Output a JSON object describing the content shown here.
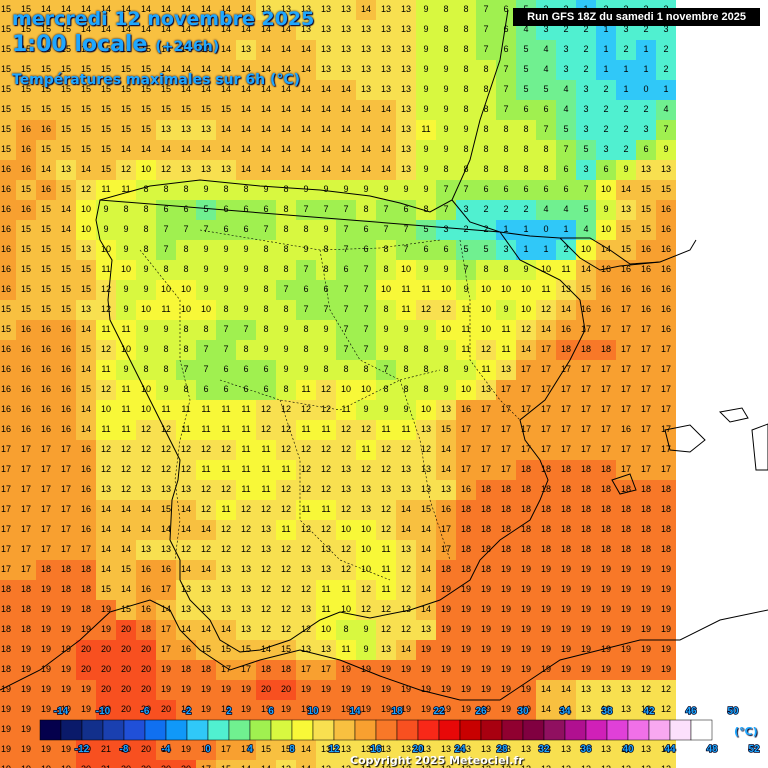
{
  "header": {
    "date": "mercredi 12 novembre 2025",
    "time": "1:00 locale",
    "lead": "(+246h)",
    "parameter": "Températures maximales sur 6h (°C)"
  },
  "run_label": "Run GFS 18Z du samedi 1 novembre 2025",
  "copyright": "Copyright 2025 Meteociel.fr",
  "legend": {
    "unit": "(°C)",
    "top_labels": [
      "-14",
      "-10",
      "-6",
      "-2",
      "2",
      "6",
      "10",
      "14",
      "18",
      "22",
      "26",
      "30",
      "34",
      "38",
      "42",
      "46",
      "50"
    ],
    "bottom_labels": [
      "-12",
      "-8",
      "-4",
      "0",
      "4",
      "8",
      "12",
      "16",
      "20",
      "24",
      "28",
      "32",
      "36",
      "40",
      "44",
      "48",
      "52"
    ],
    "colors": [
      "#04004c",
      "#0a1a6a",
      "#12308c",
      "#1a40b0",
      "#2050d8",
      "#1070f0",
      "#1098f8",
      "#30c8f8",
      "#50f0d0",
      "#70f090",
      "#a0f050",
      "#d8f840",
      "#f8f838",
      "#f8e050",
      "#f8c040",
      "#f8a030",
      "#f87828",
      "#f85020",
      "#f82818",
      "#e80808",
      "#c80000",
      "#a80010",
      "#900030",
      "#800040",
      "#901060",
      "#b01090",
      "#d020b8",
      "#e040d8",
      "#f070e8",
      "#f8a8f0",
      "#fce0fc",
      "#ffffff"
    ]
  },
  "grid_data": {
    "rows": [
      "15 15 14 14 14 14 14 14 14 14 14 14 14 13 13 13 13 13 14 13 13 9 8 8 7 6 5 3 2 1 2 3 2 3",
      "15 15 15 15 14 14 14 14 14 14 14 14 14 14 14 13 13 13 13 13 13 9 8 8 7 6 4 3 2 2 1 3 2 3",
      "15 15 15 15 15 15 15 15 14 14 14 14 13 14 14 14 13 13 13 13 13 9 8 8 7 6 5 4 3 2 1 2 1 2",
      "15 15 15 15 15 15 15 15 14 14 14 14 14 14 14 14 13 13 13 13 13 9 9 8 8 7 5 4 3 2 1 1 1 2",
      "15 15 15 15 15 15 15 15 15 14 14 14 14 14 14 14 14 14 13 13 13 9 9 8 8 7 5 5 4 3 2 1 0 1",
      "15 15 15 15 15 15 15 15 15 15 15 15 14 14 14 14 14 14 14 14 13 9 9 8 8 7 6 6 4 3 2 2 2 4",
      "15 16 16 15 15 15 15 15 13 13 13 14 14 14 14 14 14 14 14 14 13 11 9 9 8 8 8 7 5 3 2 2 3 7",
      "15 16 15 15 15 15 14 14 14 14 14 14 14 14 14 14 14 14 14 14 13 9 9 8 8 8 8 8 7 5 3 2 6 9",
      "16 16 14 13 14 15 12 10 12 13 13 13 14 14 14 14 14 14 14 14 13 9 8 8 8 8 8 8 6 3 6 9 13 13",
      "16 15 16 15 12 11 11 8 8 8 9 8 8 9 8 9 9 9 9 9 9 9 7 7 6 6 6 6 6 7 10 14 15 15",
      "16 16 15 14 10 9 8 8 6 6 5 6 6 6 8 7 7 7 8 7 6 8 7 3 2 2 2 4 4 5 9 13 15 16",
      "16 15 15 14 10 9 9 8 7 7 7 6 6 7 8 8 9 7 6 7 7 5 3 2 2 1 1 0 1 4 10 15 15 16",
      "16 15 15 15 13 10 9 8 7 8 9 9 9 8 8 9 8 7 6 8 7 6 6 5 5 3 1 1 2 10 14 15 16 16",
      "16 15 15 15 15 11 10 9 8 8 9 9 9 8 8 7 8 6 7 8 10 9 9 7 8 8 9 10 11 14 16 16 16 16",
      "16 15 15 15 15 12 9 9 10 10 9 9 9 8 7 6 6 7 7 10 11 11 10 9 10 10 10 11 13 15 16 16 16 16",
      "15 15 15 15 13 12 9 10 11 10 10 8 9 8 8 7 7 7 7 8 11 12 12 11 10 9 10 12 14 16 16 17 16 16",
      "15 16 16 16 14 11 11 9 9 8 8 7 7 8 9 8 9 7 7 9 9 9 10 11 10 11 12 14 16 17 17 17 17 16",
      "16 16 16 16 15 12 10 9 8 8 7 7 8 9 9 8 9 7 7 9 8 8 9 11 12 11 14 17 18 18 18 17 17 17",
      "16 16 16 16 14 11 9 8 8 7 7 6 6 6 9 9 8 8 8 7 8 8 8 9 11 13 17 17 17 17 17 17 17 17",
      "16 16 16 16 15 12 11 10 9 8 6 6 6 6 8 11 12 10 10 8 8 8 9 10 13 17 17 17 17 17 17 17 17 17",
      "16 16 16 16 14 10 11 10 11 11 11 11 11 12 12 12 12 11 9 9 9 10 13 16 17 17 17 17 17 17 17 17 17 17",
      "16 16 16 16 14 11 11 12 12 11 11 11 11 12 12 11 11 12 12 11 11 13 15 17 17 17 17 17 17 17 17 16 17 17",
      "17 17 17 17 16 12 12 12 12 12 12 12 11 11 12 12 12 12 11 12 12 12 14 17 17 17 17 17 17 17 17 17 17 17",
      "17 17 17 17 16 12 12 12 12 12 11 11 11 11 11 12 12 13 12 12 13 13 14 17 17 17 18 18 18 18 18 17 17 17",
      "17 17 17 17 16 13 12 13 13 13 12 12 11 11 12 12 12 13 13 13 13 13 13 16 18 18 18 18 18 18 18 18 18 18",
      "17 17 17 17 16 14 14 14 15 14 12 11 12 12 12 11 11 12 13 12 14 15 16 18 18 18 18 18 18 18 18 18 18 18",
      "17 17 17 17 16 14 14 14 14 14 14 12 12 13 11 12 12 10 10 12 14 14 17 18 18 18 18 18 18 18 18 18 18 18",
      "17 17 17 17 17 14 14 13 13 12 12 12 12 13 12 12 13 12 10 11 13 14 17 18 18 18 18 18 18 18 18 18 18 18",
      "17 17 18 18 18 14 15 16 16 14 14 13 13 12 12 13 13 12 10 11 12 14 18 18 18 19 19 19 19 19 19 19 19 19",
      "18 18 19 18 18 15 14 16 17 13 13 13 13 12 12 12 11 11 12 11 12 14 19 19 19 19 19 19 19 19 19 19 19 19",
      "18 18 19 19 18 19 15 16 14 13 13 13 13 12 12 13 11 10 12 12 13 14 19 19 19 19 19 19 19 19 19 19 19 19",
      "18 18 19 19 19 19 20 18 17 14 14 14 13 12 12 12 10 8 9 12 12 13 19 19 19 19 19 19 19 19 19 19 19 19",
      "18 19 19 19 20 20 20 20 17 16 15 15 15 14 15 13 13 11 9 13 14 19 19 19 19 19 19 19 19 19 19 19 19 19",
      "18 19 19 19 20 20 20 20 19 18 18 17 17 18 18 17 17 19 19 19 19 19 19 19 19 19 19 19 19 19 19 19 19 19",
      "19 19 19 19 19 20 20 20 19 19 19 19 19 20 20 19 19 19 19 19 19 19 19 19 19 19 19 14 14 13 13 13 12 12",
      "19 19 19 19 19 20 20 20 20 19 19 19 19 19 19 19 19 19 19 19 19 19 19 19 19 19 19 14 14 13 13 13 13 12",
      "19 19 19 19 20 20 20 20 19 19 19 18 18 17 18 18 17 17 15 14 15 13 13 13 13 13 13 13 13 13 13 13 12 13",
      "19 19 19 19 20 21 20 20 19 19 18 17 17 15 15 14 13 13 13 13 13 13 13 13 13 13 13 13 13 13 13 13 13 13",
      "19 19 19 19 20 21 20 20 20 20 17 15 14 14 13 14 13 13 13 13 13 13 13 13 13 13 13 13 13 13 13 13 13 12"
    ]
  }
}
